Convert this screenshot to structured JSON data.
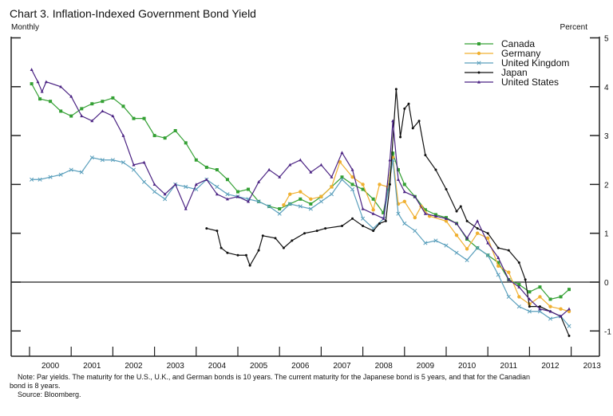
{
  "chart_data": {
    "type": "line",
    "title": "Chart 3. Inflation-Indexed Government Bond Yield",
    "frequency_label": "Monthly",
    "ylabel": "Percent",
    "ylim": [
      -1.5,
      5
    ],
    "xlim": [
      1999.56,
      2013.67
    ],
    "y_ticks": [
      5,
      4,
      3,
      2,
      1,
      0,
      -1
    ],
    "x_tick_labels": [
      "2000",
      "2001",
      "2002",
      "2003",
      "2004",
      "2005",
      "2006",
      "2007",
      "2008",
      "2009",
      "2010",
      "2011",
      "2012",
      "2013"
    ],
    "zero_line": true,
    "grid": false,
    "legend_position": "top-right",
    "series": [
      {
        "name": "Canada",
        "color": "#34a034",
        "marker": "square",
        "points": [
          [
            2000.05,
            4.06
          ],
          [
            2000.25,
            3.75
          ],
          [
            2000.5,
            3.7
          ],
          [
            2000.75,
            3.5
          ],
          [
            2001.0,
            3.4
          ],
          [
            2001.25,
            3.55
          ],
          [
            2001.5,
            3.65
          ],
          [
            2001.75,
            3.7
          ],
          [
            2002.0,
            3.77
          ],
          [
            2002.25,
            3.6
          ],
          [
            2002.5,
            3.35
          ],
          [
            2002.75,
            3.35
          ],
          [
            2003.0,
            3.0
          ],
          [
            2003.25,
            2.95
          ],
          [
            2003.5,
            3.1
          ],
          [
            2003.75,
            2.85
          ],
          [
            2004.0,
            2.5
          ],
          [
            2004.25,
            2.35
          ],
          [
            2004.5,
            2.3
          ],
          [
            2004.75,
            2.1
          ],
          [
            2005.0,
            1.85
          ],
          [
            2005.25,
            1.9
          ],
          [
            2005.5,
            1.65
          ],
          [
            2005.75,
            1.55
          ],
          [
            2006.0,
            1.5
          ],
          [
            2006.25,
            1.6
          ],
          [
            2006.5,
            1.7
          ],
          [
            2006.75,
            1.6
          ],
          [
            2007.0,
            1.75
          ],
          [
            2007.25,
            1.95
          ],
          [
            2007.5,
            2.15
          ],
          [
            2007.75,
            2.0
          ],
          [
            2008.0,
            1.9
          ],
          [
            2008.25,
            1.7
          ],
          [
            2008.49,
            1.42
          ],
          [
            2008.6,
            1.9
          ],
          [
            2008.72,
            2.64
          ],
          [
            2008.85,
            2.3
          ],
          [
            2009.0,
            2.0
          ],
          [
            2009.25,
            1.75
          ],
          [
            2009.5,
            1.48
          ],
          [
            2009.75,
            1.38
          ],
          [
            2010.0,
            1.32
          ],
          [
            2010.25,
            1.2
          ],
          [
            2010.5,
            0.88
          ],
          [
            2010.75,
            0.7
          ],
          [
            2011.0,
            0.55
          ],
          [
            2011.25,
            0.4
          ],
          [
            2011.5,
            0.05
          ],
          [
            2011.75,
            -0.05
          ],
          [
            2012.0,
            -0.2
          ],
          [
            2012.25,
            -0.1
          ],
          [
            2012.5,
            -0.35
          ],
          [
            2012.75,
            -0.3
          ],
          [
            2012.95,
            -0.15
          ]
        ]
      },
      {
        "name": "Germany",
        "color": "#f0b030",
        "marker": "circle",
        "points": [
          [
            2006.1,
            1.58
          ],
          [
            2006.25,
            1.8
          ],
          [
            2006.5,
            1.85
          ],
          [
            2006.75,
            1.7
          ],
          [
            2007.0,
            1.75
          ],
          [
            2007.25,
            1.95
          ],
          [
            2007.45,
            2.46
          ],
          [
            2007.75,
            2.15
          ],
          [
            2008.0,
            2.0
          ],
          [
            2008.25,
            1.48
          ],
          [
            2008.4,
            2.0
          ],
          [
            2008.6,
            1.95
          ],
          [
            2008.72,
            2.55
          ],
          [
            2008.85,
            1.6
          ],
          [
            2009.0,
            1.65
          ],
          [
            2009.25,
            1.32
          ],
          [
            2009.4,
            1.55
          ],
          [
            2009.6,
            1.35
          ],
          [
            2010.0,
            1.25
          ],
          [
            2010.25,
            0.96
          ],
          [
            2010.5,
            0.68
          ],
          [
            2010.75,
            1.0
          ],
          [
            2011.0,
            0.9
          ],
          [
            2011.25,
            0.33
          ],
          [
            2011.5,
            0.2
          ],
          [
            2011.75,
            -0.3
          ],
          [
            2012.0,
            -0.45
          ],
          [
            2012.25,
            -0.3
          ],
          [
            2012.5,
            -0.5
          ],
          [
            2012.75,
            -0.55
          ],
          [
            2012.95,
            -0.6
          ]
        ]
      },
      {
        "name": "United Kingdom",
        "color": "#5a9fbc",
        "marker": "x",
        "points": [
          [
            2000.05,
            2.1
          ],
          [
            2000.25,
            2.1
          ],
          [
            2000.5,
            2.15
          ],
          [
            2000.75,
            2.2
          ],
          [
            2001.0,
            2.3
          ],
          [
            2001.25,
            2.25
          ],
          [
            2001.5,
            2.55
          ],
          [
            2001.75,
            2.5
          ],
          [
            2002.0,
            2.5
          ],
          [
            2002.25,
            2.45
          ],
          [
            2002.5,
            2.3
          ],
          [
            2002.75,
            2.05
          ],
          [
            2003.0,
            1.85
          ],
          [
            2003.25,
            1.7
          ],
          [
            2003.5,
            2.0
          ],
          [
            2003.75,
            1.95
          ],
          [
            2004.0,
            1.9
          ],
          [
            2004.25,
            2.1
          ],
          [
            2004.5,
            1.95
          ],
          [
            2004.75,
            1.8
          ],
          [
            2005.0,
            1.75
          ],
          [
            2005.25,
            1.7
          ],
          [
            2005.5,
            1.65
          ],
          [
            2005.75,
            1.55
          ],
          [
            2006.0,
            1.4
          ],
          [
            2006.25,
            1.6
          ],
          [
            2006.5,
            1.55
          ],
          [
            2006.75,
            1.5
          ],
          [
            2007.0,
            1.65
          ],
          [
            2007.25,
            1.8
          ],
          [
            2007.5,
            2.1
          ],
          [
            2007.75,
            1.9
          ],
          [
            2008.0,
            1.3
          ],
          [
            2008.25,
            1.1
          ],
          [
            2008.5,
            1.3
          ],
          [
            2008.72,
            2.5
          ],
          [
            2008.85,
            1.4
          ],
          [
            2009.0,
            1.2
          ],
          [
            2009.25,
            1.05
          ],
          [
            2009.5,
            0.8
          ],
          [
            2009.75,
            0.85
          ],
          [
            2010.0,
            0.75
          ],
          [
            2010.25,
            0.6
          ],
          [
            2010.5,
            0.45
          ],
          [
            2010.75,
            0.7
          ],
          [
            2011.0,
            0.55
          ],
          [
            2011.25,
            0.15
          ],
          [
            2011.5,
            -0.3
          ],
          [
            2011.75,
            -0.5
          ],
          [
            2012.0,
            -0.6
          ],
          [
            2012.25,
            -0.6
          ],
          [
            2012.5,
            -0.75
          ],
          [
            2012.75,
            -0.7
          ],
          [
            2012.95,
            -0.9
          ]
        ]
      },
      {
        "name": "Japan",
        "color": "#111111",
        "marker": "dot",
        "points": [
          [
            2004.25,
            1.1
          ],
          [
            2004.5,
            1.05
          ],
          [
            2004.6,
            0.7
          ],
          [
            2004.75,
            0.6
          ],
          [
            2005.0,
            0.55
          ],
          [
            2005.2,
            0.55
          ],
          [
            2005.29,
            0.34
          ],
          [
            2005.5,
            0.65
          ],
          [
            2005.6,
            0.95
          ],
          [
            2005.9,
            0.9
          ],
          [
            2006.1,
            0.7
          ],
          [
            2006.3,
            0.85
          ],
          [
            2006.6,
            1.0
          ],
          [
            2006.9,
            1.05
          ],
          [
            2007.1,
            1.1
          ],
          [
            2007.5,
            1.15
          ],
          [
            2007.75,
            1.3
          ],
          [
            2008.0,
            1.15
          ],
          [
            2008.25,
            1.05
          ],
          [
            2008.4,
            1.2
          ],
          [
            2008.55,
            1.25
          ],
          [
            2008.65,
            2.0
          ],
          [
            2008.8,
            3.95
          ],
          [
            2008.9,
            2.97
          ],
          [
            2009.0,
            3.55
          ],
          [
            2009.1,
            3.65
          ],
          [
            2009.2,
            3.15
          ],
          [
            2009.35,
            3.3
          ],
          [
            2009.5,
            2.6
          ],
          [
            2009.75,
            2.3
          ],
          [
            2010.0,
            1.9
          ],
          [
            2010.25,
            1.45
          ],
          [
            2010.35,
            1.55
          ],
          [
            2010.5,
            1.25
          ],
          [
            2010.75,
            1.1
          ],
          [
            2011.0,
            1.0
          ],
          [
            2011.25,
            0.7
          ],
          [
            2011.5,
            0.65
          ],
          [
            2011.75,
            0.4
          ],
          [
            2011.9,
            0.05
          ],
          [
            2012.0,
            -0.5
          ],
          [
            2012.25,
            -0.5
          ],
          [
            2012.5,
            -0.6
          ],
          [
            2012.75,
            -0.7
          ],
          [
            2012.95,
            -1.1
          ]
        ]
      },
      {
        "name": "United States",
        "color": "#4b2383",
        "marker": "triangle",
        "points": [
          [
            2000.05,
            4.35
          ],
          [
            2000.2,
            4.1
          ],
          [
            2000.3,
            3.9
          ],
          [
            2000.4,
            4.1
          ],
          [
            2000.75,
            4.0
          ],
          [
            2001.0,
            3.8
          ],
          [
            2001.25,
            3.4
          ],
          [
            2001.5,
            3.3
          ],
          [
            2001.75,
            3.5
          ],
          [
            2002.0,
            3.4
          ],
          [
            2002.25,
            3.0
          ],
          [
            2002.5,
            2.4
          ],
          [
            2002.75,
            2.45
          ],
          [
            2003.0,
            2.0
          ],
          [
            2003.25,
            1.8
          ],
          [
            2003.5,
            2.0
          ],
          [
            2003.75,
            1.5
          ],
          [
            2004.0,
            2.0
          ],
          [
            2004.25,
            2.1
          ],
          [
            2004.5,
            1.8
          ],
          [
            2004.75,
            1.7
          ],
          [
            2005.0,
            1.75
          ],
          [
            2005.25,
            1.65
          ],
          [
            2005.5,
            2.05
          ],
          [
            2005.75,
            2.3
          ],
          [
            2006.0,
            2.15
          ],
          [
            2006.25,
            2.4
          ],
          [
            2006.5,
            2.5
          ],
          [
            2006.75,
            2.25
          ],
          [
            2007.0,
            2.4
          ],
          [
            2007.25,
            2.15
          ],
          [
            2007.5,
            2.65
          ],
          [
            2007.75,
            2.3
          ],
          [
            2008.0,
            1.5
          ],
          [
            2008.25,
            1.4
          ],
          [
            2008.5,
            1.3
          ],
          [
            2008.65,
            2.5
          ],
          [
            2008.72,
            3.3
          ],
          [
            2008.85,
            2.1
          ],
          [
            2009.0,
            1.85
          ],
          [
            2009.25,
            1.75
          ],
          [
            2009.5,
            1.4
          ],
          [
            2009.75,
            1.35
          ],
          [
            2010.0,
            1.3
          ],
          [
            2010.25,
            1.2
          ],
          [
            2010.5,
            0.9
          ],
          [
            2010.75,
            1.25
          ],
          [
            2011.0,
            0.8
          ],
          [
            2011.25,
            0.5
          ],
          [
            2011.5,
            0.05
          ],
          [
            2011.75,
            -0.1
          ],
          [
            2012.0,
            -0.35
          ],
          [
            2012.25,
            -0.55
          ],
          [
            2012.5,
            -0.6
          ],
          [
            2012.75,
            -0.7
          ],
          [
            2012.95,
            -0.55
          ]
        ]
      }
    ]
  },
  "notes": {
    "note_line1": "Note:  Par yields.  The maturity for the U.S., U.K., and German bonds is 10 years.  The current maturity for the Japanese bond is 5 years, and that for the Canadian",
    "note_line2": "bond is 8 years.",
    "source": "Source:  Bloomberg."
  }
}
